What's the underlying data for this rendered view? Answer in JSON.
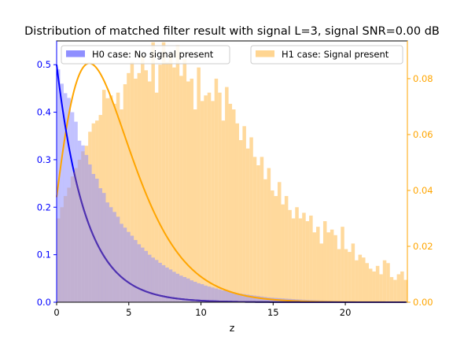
{
  "chart_data": {
    "type": "bar",
    "title": "Distribution of matched filter result with signal L=3, signal SNR=0.00 dB",
    "xlabel": "z",
    "ylabel_left": "",
    "ylabel_right": "",
    "xlim": [
      0,
      24.3
    ],
    "ylim_left": [
      0,
      0.55
    ],
    "ylim_right": [
      0,
      0.0935
    ],
    "x_ticks": [
      0,
      5,
      10,
      15,
      20
    ],
    "y_ticks_left": [
      0.0,
      0.1,
      0.2,
      0.3,
      0.4,
      0.5
    ],
    "y_ticks_right": [
      0.0,
      0.02,
      0.04,
      0.06,
      0.08
    ],
    "bin_width": 0.243,
    "legend": [
      {
        "label": "H0 case: No signal present",
        "color": "#8f8fff",
        "position": "upper-left"
      },
      {
        "label": "H1 case: Signal present",
        "color": "#ffd591",
        "position": "upper-right"
      }
    ],
    "series": [
      {
        "name": "H0 case: No signal present",
        "axis": "left",
        "kind": "histogram",
        "color": "#8f8fff",
        "values": [
          0.49,
          0.46,
          0.44,
          0.43,
          0.4,
          0.38,
          0.34,
          0.33,
          0.31,
          0.29,
          0.27,
          0.26,
          0.24,
          0.23,
          0.21,
          0.2,
          0.19,
          0.18,
          0.165,
          0.157,
          0.148,
          0.14,
          0.131,
          0.122,
          0.115,
          0.108,
          0.1,
          0.094,
          0.089,
          0.083,
          0.078,
          0.073,
          0.069,
          0.064,
          0.06,
          0.056,
          0.053,
          0.05,
          0.046,
          0.043,
          0.04,
          0.038,
          0.035,
          0.033,
          0.031,
          0.029,
          0.027,
          0.025,
          0.024,
          0.022,
          0.021,
          0.019,
          0.018,
          0.017,
          0.016,
          0.015,
          0.014,
          0.013,
          0.012,
          0.011,
          0.01,
          0.0095,
          0.009,
          0.0085,
          0.008,
          0.0075,
          0.007,
          0.0065,
          0.006,
          0.0056,
          0.0052,
          0.0049,
          0.0045,
          0.0042,
          0.0039,
          0.0036,
          0.0034,
          0.0032,
          0.003,
          0.0028,
          0.0026,
          0.0024,
          0.0022,
          0.002,
          0.0018,
          0.0017,
          0.0016,
          0.0015,
          0.0014,
          0.0013
        ]
      },
      {
        "name": "H1 case: Signal present",
        "axis": "right",
        "kind": "histogram",
        "color": "#ffd591",
        "values": [
          0.03,
          0.034,
          0.038,
          0.041,
          0.045,
          0.048,
          0.051,
          0.054,
          0.056,
          0.061,
          0.064,
          0.065,
          0.067,
          0.076,
          0.073,
          0.074,
          0.071,
          0.075,
          0.069,
          0.078,
          0.082,
          0.086,
          0.08,
          0.082,
          0.088,
          0.083,
          0.079,
          0.093,
          0.075,
          0.085,
          0.093,
          0.086,
          0.089,
          0.084,
          0.092,
          0.081,
          0.087,
          0.079,
          0.08,
          0.069,
          0.084,
          0.072,
          0.074,
          0.075,
          0.072,
          0.08,
          0.075,
          0.065,
          0.077,
          0.071,
          0.069,
          0.064,
          0.058,
          0.063,
          0.055,
          0.059,
          0.052,
          0.049,
          0.052,
          0.044,
          0.048,
          0.04,
          0.038,
          0.043,
          0.035,
          0.038,
          0.033,
          0.03,
          0.034,
          0.03,
          0.032,
          0.029,
          0.031,
          0.025,
          0.027,
          0.021,
          0.029,
          0.025,
          0.026,
          0.024,
          0.019,
          0.027,
          0.019,
          0.018,
          0.021,
          0.015,
          0.017,
          0.016,
          0.014,
          0.012,
          0.011,
          0.013,
          0.01,
          0.015,
          0.014,
          0.009,
          0.008,
          0.01,
          0.011,
          0.008
        ]
      }
    ]
  }
}
